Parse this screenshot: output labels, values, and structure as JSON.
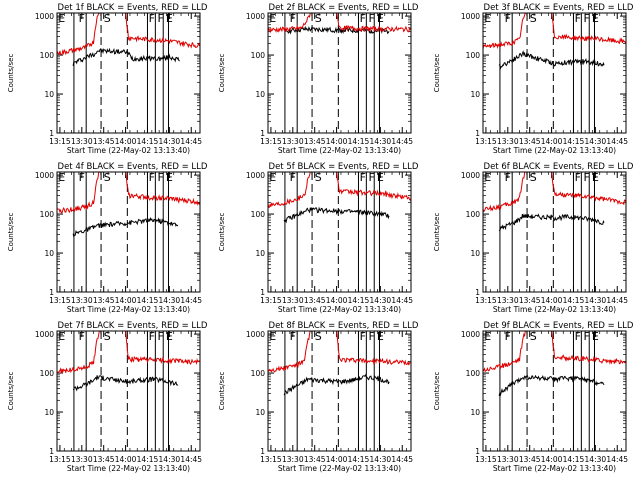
{
  "figure": {
    "time_ticks": [
      "13:15",
      "13:30",
      "13:45",
      "14:00",
      "14:15",
      "14:30",
      "14:45"
    ],
    "y_ticks": [
      "1",
      "10",
      "100",
      "1000"
    ],
    "colors": {
      "events": "#000000",
      "lld": "#e00000",
      "axes": "#000000"
    },
    "markers": [
      {
        "label": "E",
        "t": 13.27
      },
      {
        "label": "F",
        "t": 13.5
      },
      {
        "label": "S",
        "t": 13.79
      },
      {
        "label": "F",
        "t": 14.3
      },
      {
        "label": "F",
        "t": 14.4
      },
      {
        "label": "E",
        "t": 14.5
      }
    ],
    "vlines": [
      {
        "t": 13.41,
        "style": "solid"
      },
      {
        "t": 13.55,
        "style": "solid"
      },
      {
        "t": 13.72,
        "style": "dashed"
      },
      {
        "t": 14.02,
        "style": "dashed"
      },
      {
        "t": 14.25,
        "style": "solid"
      },
      {
        "t": 14.34,
        "style": "solid"
      },
      {
        "t": 14.43,
        "style": "solid"
      },
      {
        "t": 14.49,
        "style": "solid"
      }
    ]
  },
  "chart_data": [
    {
      "type": "line",
      "title": "Det 1f BLACK = Events, RED = LLD",
      "xlabel": "Start Time (22-May-02 13:13:40)",
      "ylabel": "Counts/sec",
      "xlim": [
        "13:13",
        "14:51"
      ],
      "ylim": [
        1,
        1200
      ],
      "y_scale": "log",
      "series": [
        {
          "name": "Events",
          "color": "#000000",
          "x": [
            "13:24",
            "13:27",
            "13:31",
            "13:36",
            "13:39",
            "13:41",
            "14:01",
            "14:05",
            "14:15",
            "14:25",
            "14:30",
            "14:35",
            "14:37"
          ],
          "y": [
            60,
            70,
            80,
            100,
            110,
            130,
            120,
            80,
            85,
            80,
            90,
            80,
            70
          ]
        },
        {
          "name": "LLD",
          "color": "#e00000",
          "x": [
            "13:13",
            "13:20",
            "13:27",
            "13:33",
            "13:38",
            "13:40",
            "13:42",
            "14:00",
            "14:02",
            "14:10",
            "14:20",
            "14:30",
            "14:40",
            "14:51"
          ],
          "y": [
            110,
            125,
            140,
            160,
            220,
            800,
            1200,
            1200,
            280,
            260,
            250,
            230,
            200,
            170
          ]
        }
      ]
    },
    {
      "type": "line",
      "title": "Det 2f BLACK = Events, RED = LLD",
      "xlabel": "Start Time (22-May-02 13:13:40)",
      "ylabel": "Counts/sec",
      "xlim": [
        "13:13",
        "14:51"
      ],
      "ylim": [
        1,
        1200
      ],
      "y_scale": "log",
      "series": [
        {
          "name": "Events",
          "color": "#000000",
          "x": [
            "13:24",
            "13:30",
            "13:36",
            "13:40",
            "14:02",
            "14:10",
            "14:20",
            "14:30",
            "14:36"
          ],
          "y": [
            420,
            430,
            450,
            460,
            440,
            430,
            430,
            420,
            410
          ]
        },
        {
          "name": "LLD",
          "color": "#e00000",
          "x": [
            "13:13",
            "13:25",
            "13:36",
            "13:40",
            "13:42",
            "14:00",
            "14:02",
            "14:15",
            "14:30",
            "14:51"
          ],
          "y": [
            440,
            460,
            490,
            800,
            1200,
            1200,
            500,
            480,
            470,
            460
          ]
        }
      ]
    },
    {
      "type": "line",
      "title": "Det 3f BLACK = Events, RED = LLD",
      "xlabel": "Start Time (22-May-02 13:13:40)",
      "ylabel": "Counts/sec",
      "xlim": [
        "13:13",
        "14:51"
      ],
      "ylim": [
        1,
        1200
      ],
      "y_scale": "log",
      "series": [
        {
          "name": "Events",
          "color": "#000000",
          "x": [
            "13:24",
            "13:28",
            "13:33",
            "13:37",
            "13:40",
            "14:02",
            "14:10",
            "14:20",
            "14:30",
            "14:36"
          ],
          "y": [
            50,
            60,
            75,
            90,
            110,
            60,
            65,
            70,
            65,
            55
          ]
        },
        {
          "name": "LLD",
          "color": "#e00000",
          "x": [
            "13:13",
            "13:22",
            "13:32",
            "13:38",
            "13:40",
            "13:42",
            "14:00",
            "14:02",
            "14:15",
            "14:30",
            "14:51"
          ],
          "y": [
            160,
            180,
            200,
            250,
            700,
            1200,
            1200,
            300,
            280,
            260,
            220
          ]
        }
      ]
    },
    {
      "type": "line",
      "title": "Det 4f BLACK = Events, RED = LLD",
      "xlabel": "Start Time (22-May-02 13:13:40)",
      "ylabel": "Counts/sec",
      "xlim": [
        "13:13",
        "14:51"
      ],
      "ylim": [
        1,
        1200
      ],
      "y_scale": "log",
      "series": [
        {
          "name": "Events",
          "color": "#000000",
          "x": [
            "13:24",
            "13:29",
            "13:34",
            "13:38",
            "13:40",
            "14:02",
            "14:10",
            "14:20",
            "14:30",
            "14:36"
          ],
          "y": [
            30,
            35,
            40,
            45,
            50,
            60,
            65,
            70,
            60,
            50
          ]
        },
        {
          "name": "LLD",
          "color": "#e00000",
          "x": [
            "13:13",
            "13:22",
            "13:32",
            "13:38",
            "13:40",
            "13:42",
            "14:00",
            "14:02",
            "14:15",
            "14:30",
            "14:51"
          ],
          "y": [
            120,
            130,
            150,
            200,
            600,
            1200,
            1200,
            300,
            270,
            250,
            200
          ]
        }
      ]
    },
    {
      "type": "line",
      "title": "Det 5f BLACK = Events, RED = LLD",
      "xlabel": "Start Time (22-May-02 13:13:40)",
      "ylabel": "Counts/sec",
      "xlim": [
        "13:13",
        "14:51"
      ],
      "ylim": [
        1,
        1200
      ],
      "y_scale": "log",
      "series": [
        {
          "name": "Events",
          "color": "#000000",
          "x": [
            "13:24",
            "13:29",
            "13:34",
            "13:38",
            "13:40",
            "14:02",
            "14:10",
            "14:20",
            "14:30",
            "14:36"
          ],
          "y": [
            70,
            80,
            100,
            110,
            130,
            120,
            115,
            110,
            100,
            90
          ]
        },
        {
          "name": "LLD",
          "color": "#e00000",
          "x": [
            "13:13",
            "13:22",
            "13:32",
            "13:38",
            "13:40",
            "13:42",
            "14:00",
            "14:02",
            "14:15",
            "14:30",
            "14:51"
          ],
          "y": [
            170,
            190,
            240,
            300,
            700,
            1200,
            1200,
            380,
            360,
            340,
            260
          ]
        }
      ]
    },
    {
      "type": "line",
      "title": "Det 6f BLACK = Events, RED = LLD",
      "xlabel": "Start Time (22-May-02 13:13:40)",
      "ylabel": "Counts/sec",
      "xlim": [
        "13:13",
        "14:51"
      ],
      "ylim": [
        1,
        1200
      ],
      "y_scale": "log",
      "series": [
        {
          "name": "Events",
          "color": "#000000",
          "x": [
            "13:24",
            "13:29",
            "13:34",
            "13:38",
            "13:40",
            "14:02",
            "14:10",
            "14:20",
            "14:30",
            "14:36"
          ],
          "y": [
            40,
            50,
            60,
            75,
            90,
            80,
            85,
            80,
            70,
            60
          ]
        },
        {
          "name": "LLD",
          "color": "#e00000",
          "x": [
            "13:13",
            "13:22",
            "13:32",
            "13:38",
            "13:40",
            "13:42",
            "14:00",
            "14:02",
            "14:15",
            "14:30",
            "14:51"
          ],
          "y": [
            130,
            150,
            180,
            250,
            700,
            1200,
            1200,
            330,
            300,
            260,
            200
          ]
        }
      ]
    },
    {
      "type": "line",
      "title": "Det 7f BLACK = Events, RED = LLD",
      "xlabel": "Start Time (22-May-02 13:13:40)",
      "ylabel": "Counts/sec",
      "xlim": [
        "13:13",
        "14:51"
      ],
      "ylim": [
        1,
        1200
      ],
      "y_scale": "log",
      "series": [
        {
          "name": "Events",
          "color": "#000000",
          "x": [
            "13:24",
            "13:29",
            "13:34",
            "13:38",
            "13:40",
            "14:02",
            "14:10",
            "14:20",
            "14:30",
            "14:36"
          ],
          "y": [
            40,
            45,
            55,
            65,
            80,
            60,
            65,
            70,
            60,
            50
          ]
        },
        {
          "name": "LLD",
          "color": "#e00000",
          "x": [
            "13:13",
            "13:22",
            "13:32",
            "13:38",
            "13:40",
            "13:42",
            "14:00",
            "14:02",
            "14:15",
            "14:30",
            "14:51"
          ],
          "y": [
            110,
            120,
            140,
            180,
            600,
            1200,
            1200,
            230,
            220,
            210,
            190
          ]
        }
      ]
    },
    {
      "type": "line",
      "title": "Det 8f BLACK = Events, RED = LLD",
      "xlabel": "Start Time (22-May-02 13:13:40)",
      "ylabel": "Counts/sec",
      "xlim": [
        "13:13",
        "14:51"
      ],
      "ylim": [
        1,
        1200
      ],
      "y_scale": "log",
      "series": [
        {
          "name": "Events",
          "color": "#000000",
          "x": [
            "13:24",
            "13:29",
            "13:34",
            "13:38",
            "13:40",
            "14:02",
            "14:10",
            "14:20",
            "14:30",
            "14:36"
          ],
          "y": [
            30,
            40,
            50,
            60,
            70,
            60,
            65,
            80,
            70,
            60
          ]
        },
        {
          "name": "LLD",
          "color": "#e00000",
          "x": [
            "13:13",
            "13:22",
            "13:32",
            "13:38",
            "13:40",
            "13:42",
            "14:00",
            "14:02",
            "14:15",
            "14:30",
            "14:51"
          ],
          "y": [
            120,
            130,
            160,
            200,
            600,
            1200,
            1200,
            220,
            210,
            200,
            180
          ]
        }
      ]
    },
    {
      "type": "line",
      "title": "Det 9f BLACK = Events, RED = LLD",
      "xlabel": "Start Time (22-May-02 13:13:40)",
      "ylabel": "Counts/sec",
      "xlim": [
        "13:13",
        "14:51"
      ],
      "ylim": [
        1,
        1200
      ],
      "y_scale": "log",
      "series": [
        {
          "name": "Events",
          "color": "#000000",
          "x": [
            "13:24",
            "13:29",
            "13:34",
            "13:38",
            "13:40",
            "14:02",
            "14:10",
            "14:20",
            "14:30",
            "14:36"
          ],
          "y": [
            30,
            40,
            55,
            65,
            80,
            70,
            75,
            70,
            60,
            50
          ]
        },
        {
          "name": "LLD",
          "color": "#e00000",
          "x": [
            "13:13",
            "13:22",
            "13:32",
            "13:38",
            "13:40",
            "13:42",
            "14:00",
            "14:02",
            "14:15",
            "14:30",
            "14:51"
          ],
          "y": [
            120,
            140,
            180,
            230,
            650,
            1200,
            1200,
            260,
            240,
            220,
            190
          ]
        }
      ]
    }
  ]
}
